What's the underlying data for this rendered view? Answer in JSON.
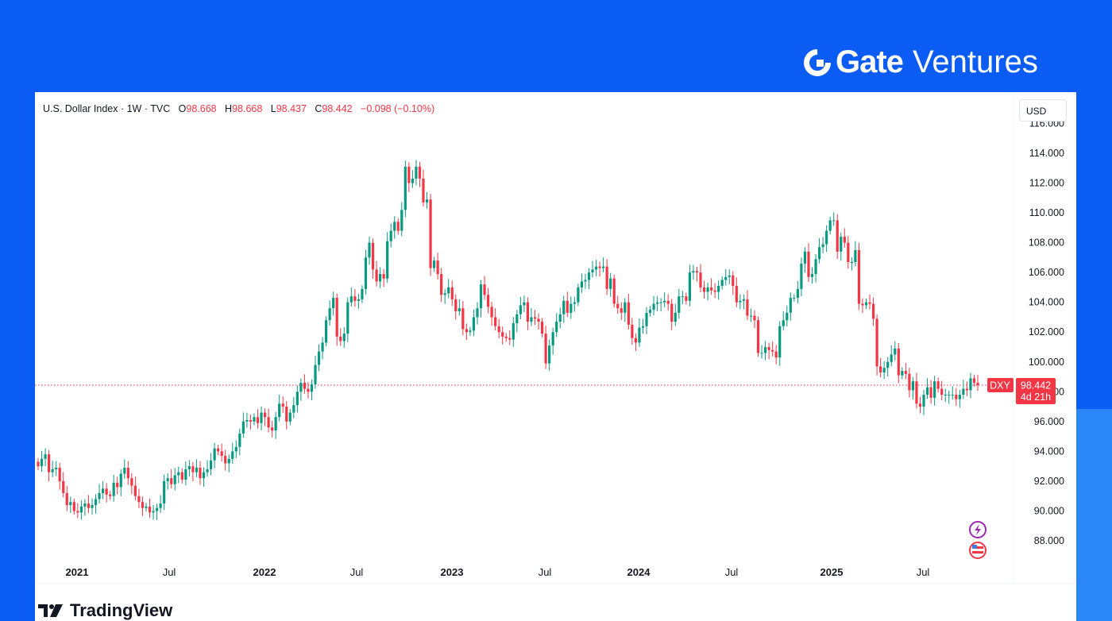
{
  "brand": {
    "logo_text_bold": "Gate",
    "logo_text": "Ventures"
  },
  "legend": {
    "symbol": "U.S. Dollar Index · 1W · TVC",
    "o_label": "O",
    "o": "98.668",
    "h_label": "H",
    "h": "98.668",
    "l_label": "L",
    "l": "98.437",
    "c_label": "C",
    "c": "98.442",
    "change": "−0.098 (−0.10%)"
  },
  "currency_button": "USD",
  "price_tag": {
    "symbol": "DXY",
    "price": "98.442",
    "countdown": "4d 21h"
  },
  "footer": {
    "brand": "TradingView"
  },
  "colors": {
    "up": "#089981",
    "down": "#f23645",
    "background": "#0b5cf4"
  },
  "chart_data": {
    "type": "candlestick",
    "interval": "1W",
    "title": "U.S. Dollar Index",
    "ylim": [
      86.5,
      116
    ],
    "y_ticks": [
      "116.000",
      "114.000",
      "112.000",
      "110.000",
      "108.000",
      "106.000",
      "104.000",
      "102.000",
      "100.000",
      "98.000",
      "96.000",
      "94.000",
      "92.000",
      "90.000",
      "88.000"
    ],
    "x_ticks": [
      {
        "label": "2021",
        "bold": true
      },
      {
        "label": "Jul",
        "bold": false
      },
      {
        "label": "2022",
        "bold": true
      },
      {
        "label": "Jul",
        "bold": false
      },
      {
        "label": "2023",
        "bold": true
      },
      {
        "label": "Jul",
        "bold": false
      },
      {
        "label": "2024",
        "bold": true
      },
      {
        "label": "Jul",
        "bold": false
      },
      {
        "label": "2025",
        "bold": true
      },
      {
        "label": "Jul",
        "bold": false
      }
    ],
    "first_open": 93.3,
    "closes": [
      93.0,
      93.5,
      93.8,
      92.6,
      92.8,
      92.9,
      92.0,
      91.2,
      90.4,
      90.6,
      90.0,
      89.9,
      90.3,
      90.5,
      90.2,
      90.4,
      90.8,
      91.2,
      91.5,
      91.1,
      91.0,
      91.9,
      91.6,
      92.5,
      92.9,
      92.2,
      91.7,
      91.0,
      90.6,
      90.2,
      90.3,
      89.9,
      90.0,
      90.2,
      90.5,
      92.0,
      92.2,
      91.8,
      92.4,
      92.6,
      92.1,
      92.8,
      93.0,
      92.6,
      92.9,
      92.2,
      92.6,
      92.8,
      93.4,
      94.2,
      94.0,
      93.7,
      93.2,
      93.5,
      94.0,
      94.3,
      95.2,
      96.0,
      96.1,
      96.0,
      96.3,
      95.9,
      96.6,
      96.3,
      95.6,
      95.4,
      96.3,
      97.2,
      97.0,
      96.0,
      96.6,
      97.1,
      98.0,
      98.6,
      98.2,
      98.0,
      98.5,
      99.8,
      100.7,
      101.3,
      102.8,
      103.6,
      104.3,
      101.7,
      101.4,
      101.9,
      104.0,
      104.4,
      104.1,
      104.2,
      104.9,
      107.0,
      108.0,
      106.2,
      105.4,
      105.9,
      105.6,
      108.1,
      108.8,
      109.4,
      108.8,
      110.2,
      113.1,
      112.0,
      112.3,
      113.1,
      112.3,
      110.7,
      110.9,
      106.3,
      106.8,
      105.9,
      104.5,
      104.6,
      105.0,
      104.2,
      103.4,
      103.6,
      102.2,
      102.0,
      102.1,
      103.0,
      103.6,
      105.2,
      104.5,
      103.7,
      103.0,
      102.4,
      102.0,
      101.7,
      101.6,
      101.5,
      102.6,
      103.2,
      103.8,
      104.0,
      102.7,
      103.0,
      102.9,
      102.7,
      101.9,
      99.9,
      101.1,
      102.0,
      102.7,
      103.2,
      104.1,
      103.3,
      103.9,
      104.0,
      105.0,
      105.4,
      105.5,
      106.0,
      106.2,
      106.4,
      106.3,
      106.4,
      104.9,
      105.6,
      103.9,
      103.6,
      103.3,
      104.0,
      102.5,
      101.6,
      101.3,
      102.3,
      102.4,
      103.3,
      103.5,
      103.9,
      104.0,
      104.0,
      104.1,
      103.9,
      102.7,
      103.3,
      104.4,
      104.4,
      104.1,
      106.0,
      106.1,
      106.0,
      105.0,
      104.7,
      105.0,
      104.8,
      104.7,
      105.1,
      105.5,
      105.7,
      105.8,
      105.1,
      104.0,
      104.1,
      104.2,
      103.1,
      103.1,
      102.8,
      100.6,
      100.6,
      101.0,
      100.8,
      100.7,
      100.3,
      102.4,
      102.8,
      103.3,
      104.3,
      104.3,
      104.9,
      106.6,
      107.4,
      105.7,
      105.9,
      106.9,
      107.7,
      107.9,
      108.8,
      109.5,
      109.5,
      107.4,
      108.4,
      108.0,
      106.7,
      106.7,
      107.5,
      103.9,
      103.8,
      104.0,
      103.9,
      102.9,
      99.7,
      99.3,
      99.6,
      100.0,
      100.5,
      100.9,
      99.1,
      99.4,
      99.2,
      98.1,
      98.7,
      97.2,
      97.0,
      97.8,
      98.3,
      97.6,
      98.7,
      98.2,
      97.8,
      97.8,
      97.8,
      97.8,
      97.5,
      97.8,
      98.2,
      98.1,
      98.9,
      98.6,
      98.442
    ],
    "last_price": 98.442,
    "grid": false
  }
}
